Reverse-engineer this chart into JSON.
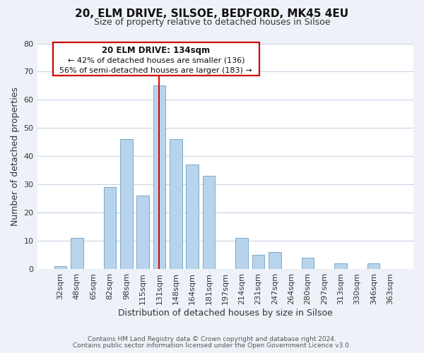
{
  "title_line1": "20, ELM DRIVE, SILSOE, BEDFORD, MK45 4EU",
  "title_line2": "Size of property relative to detached houses in Silsoe",
  "xlabel": "Distribution of detached houses by size in Silsoe",
  "ylabel": "Number of detached properties",
  "categories": [
    "32sqm",
    "48sqm",
    "65sqm",
    "82sqm",
    "98sqm",
    "115sqm",
    "131sqm",
    "148sqm",
    "164sqm",
    "181sqm",
    "197sqm",
    "214sqm",
    "231sqm",
    "247sqm",
    "264sqm",
    "280sqm",
    "297sqm",
    "313sqm",
    "330sqm",
    "346sqm",
    "363sqm"
  ],
  "values": [
    1,
    11,
    0,
    29,
    46,
    26,
    65,
    46,
    37,
    33,
    0,
    11,
    5,
    6,
    0,
    4,
    0,
    2,
    0,
    2,
    0
  ],
  "bar_color": "#b8d4ec",
  "bar_edge_color": "#7aaac8",
  "highlight_index": 6,
  "highlight_line_color": "#cc0000",
  "ylim": [
    0,
    80
  ],
  "yticks": [
    0,
    10,
    20,
    30,
    40,
    50,
    60,
    70,
    80
  ],
  "annotation_text_line1": "20 ELM DRIVE: 134sqm",
  "annotation_text_line2": "← 42% of detached houses are smaller (136)",
  "annotation_text_line3": "56% of semi-detached houses are larger (183) →",
  "annotation_box_facecolor": "#ffffff",
  "annotation_box_edgecolor": "#cc0000",
  "footer_line1": "Contains HM Land Registry data © Crown copyright and database right 2024.",
  "footer_line2": "Contains public sector information licensed under the Open Government Licence v3.0.",
  "bg_color": "#eef2f8",
  "plot_bg_color": "#ffffff",
  "grid_color": "#c8d4e4",
  "title1_fontsize": 11,
  "title2_fontsize": 9,
  "xlabel_fontsize": 9,
  "ylabel_fontsize": 9,
  "tick_fontsize": 8,
  "ann_fontsize": 8.5,
  "footer_fontsize": 6.5
}
